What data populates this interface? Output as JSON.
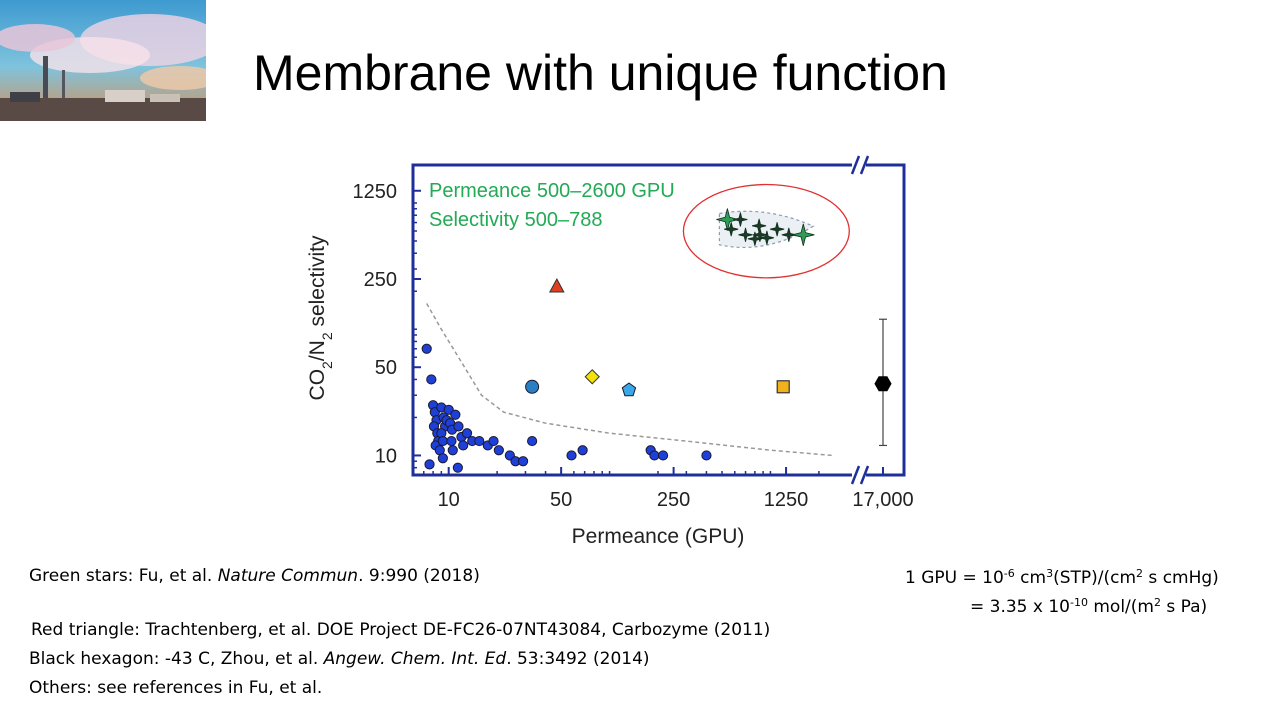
{
  "slide": {
    "title": "Membrane with unique function"
  },
  "chart_data": {
    "type": "scatter",
    "title": "",
    "xlabel": "Permeance (GPU)",
    "ylabel": "CO2/N2 selectivity",
    "x_scale": "log",
    "y_scale": "log",
    "x_axis_break": true,
    "xlim": [
      6,
      3500
    ],
    "ylim": [
      7,
      2000
    ],
    "x_ticks": [
      {
        "value": 10,
        "label": "10"
      },
      {
        "value": 50,
        "label": "50"
      },
      {
        "value": 250,
        "label": "250"
      },
      {
        "value": 1250,
        "label": "1250"
      },
      {
        "value": 17000,
        "label": "17,000"
      }
    ],
    "y_ticks": [
      {
        "value": 10,
        "label": "10"
      },
      {
        "value": 50,
        "label": "50"
      },
      {
        "value": 250,
        "label": "250"
      },
      {
        "value": 1250,
        "label": "1250"
      }
    ],
    "annotation_lines": [
      "Permeance 500–2600 GPU",
      "Selectivity 500–788"
    ],
    "upper_bound_curve": [
      [
        7.3,
        160
      ],
      [
        9,
        100
      ],
      [
        12,
        55
      ],
      [
        16,
        30
      ],
      [
        22,
        22
      ],
      [
        40,
        18
      ],
      [
        100,
        15
      ],
      [
        300,
        13
      ],
      [
        1000,
        11
      ],
      [
        2400,
        10
      ]
    ],
    "series": [
      {
        "marker": "circle",
        "color": "#1f3fd9",
        "points": [
          [
            7.3,
            70
          ],
          [
            7.8,
            40
          ],
          [
            8,
            25
          ],
          [
            8.2,
            22
          ],
          [
            8.4,
            19
          ],
          [
            8.1,
            17
          ],
          [
            8.5,
            15
          ],
          [
            8.6,
            13
          ],
          [
            8.3,
            12
          ],
          [
            8.8,
            11
          ],
          [
            9,
            24
          ],
          [
            9.3,
            20
          ],
          [
            9.5,
            17
          ],
          [
            9,
            15
          ],
          [
            9.2,
            13
          ],
          [
            9.7,
            19
          ],
          [
            10,
            23
          ],
          [
            10.2,
            18
          ],
          [
            10.5,
            16
          ],
          [
            10.4,
            13
          ],
          [
            10.6,
            11
          ],
          [
            11,
            21
          ],
          [
            11.5,
            17
          ],
          [
            12,
            14
          ],
          [
            12.3,
            12
          ],
          [
            13,
            15
          ],
          [
            14,
            13
          ],
          [
            7.6,
            8.5
          ],
          [
            9.2,
            9.5
          ],
          [
            11.4,
            8
          ],
          [
            15.5,
            13
          ],
          [
            17.5,
            12
          ],
          [
            19,
            13
          ],
          [
            20.5,
            11
          ],
          [
            24,
            10
          ],
          [
            26,
            9
          ],
          [
            29,
            9
          ],
          [
            33,
            13
          ],
          [
            58,
            10
          ],
          [
            68,
            11
          ],
          [
            180,
            11
          ],
          [
            190,
            10
          ],
          [
            215,
            10
          ],
          [
            400,
            10
          ]
        ]
      },
      {
        "marker": "circle",
        "color": "#2a7fc4",
        "points": [
          [
            33,
            35
          ]
        ]
      },
      {
        "marker": "triangle",
        "color": "#e0401f",
        "points": [
          [
            47,
            220
          ]
        ]
      },
      {
        "marker": "diamond",
        "color": "#f2e20a",
        "points": [
          [
            78,
            42
          ]
        ]
      },
      {
        "marker": "pentagon",
        "color": "#3aa8e8",
        "points": [
          [
            132,
            33
          ]
        ]
      },
      {
        "marker": "square",
        "color": "#f0b21a",
        "points": [
          [
            1200,
            35
          ]
        ]
      },
      {
        "marker": "star",
        "color": "#2e9b57",
        "points": [
          [
            540,
            740
          ],
          [
            570,
            620
          ],
          [
            650,
            740
          ],
          [
            700,
            560
          ],
          [
            800,
            520
          ],
          [
            850,
            660
          ],
          [
            860,
            560
          ],
          [
            950,
            530
          ],
          [
            1100,
            620
          ],
          [
            1300,
            560
          ],
          [
            1600,
            560
          ]
        ]
      },
      {
        "marker": "hexagon",
        "color": "#000000",
        "points": [
          [
            17000,
            37
          ]
        ],
        "y_error": [
          12,
          120
        ]
      }
    ]
  },
  "refs": {
    "r1": {
      "pre": "Green stars: Fu, et al. ",
      "ital": "Nature Commun",
      "post": ". 9:990 (2018)"
    },
    "r2": "Red triangle: Trachtenberg, et al. DOE Project DE-FC26-07NT43084, Carbozyme (2011)",
    "r3": {
      "pre": "Black hexagon: -43 C, Zhou, et al. ",
      "ital": "Angew. Chem. Int. Ed",
      "post": ". 53:3492 (2014)"
    },
    "r4": "Others: see references in Fu, et al."
  },
  "gpu": {
    "l1": [
      "1 GPU = 10",
      "-6",
      " cm",
      "3",
      "(STP)/(cm",
      "2",
      " s cmHg)"
    ],
    "l2": [
      "= 3.35 x 10",
      "-10",
      " mol/(m",
      "2",
      " s Pa)"
    ]
  }
}
